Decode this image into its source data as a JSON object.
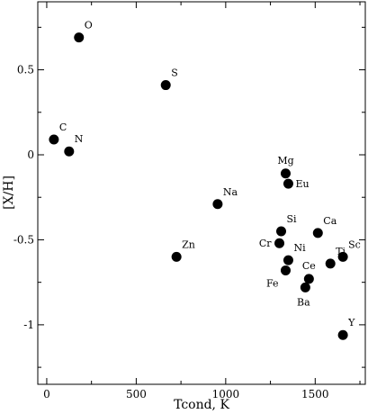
{
  "chart_data": {
    "type": "scatter",
    "xlabel": "Tcond, K",
    "ylabel": "[X/H]",
    "xlim": [
      -50,
      1780
    ],
    "ylim": [
      -1.35,
      0.9
    ],
    "x_ticks": [
      0,
      500,
      1000,
      1500
    ],
    "y_ticks": [
      -1,
      -0.5,
      0,
      0.5
    ],
    "x_tick_labels": [
      "0",
      "500",
      "1000",
      "1500"
    ],
    "y_tick_labels": [
      "-1",
      "-0.5",
      "0",
      "0.5"
    ],
    "grid": false,
    "points": [
      {
        "label": "O",
        "x": 180,
        "y": 0.69,
        "label_pos": "top-right"
      },
      {
        "label": "S",
        "x": 665,
        "y": 0.41,
        "label_pos": "top-right"
      },
      {
        "label": "C",
        "x": 40,
        "y": 0.09,
        "label_pos": "top-right"
      },
      {
        "label": "N",
        "x": 125,
        "y": 0.02,
        "label_pos": "top-right"
      },
      {
        "label": "Mg",
        "x": 1335,
        "y": -0.11,
        "label_pos": "top"
      },
      {
        "label": "Eu",
        "x": 1350,
        "y": -0.17,
        "label_pos": "right"
      },
      {
        "label": "Na",
        "x": 955,
        "y": -0.29,
        "label_pos": "top-right"
      },
      {
        "label": "Si",
        "x": 1310,
        "y": -0.45,
        "label_pos": "top-right"
      },
      {
        "label": "Ca",
        "x": 1515,
        "y": -0.46,
        "label_pos": "top-right"
      },
      {
        "label": "Cr",
        "x": 1300,
        "y": -0.52,
        "label_pos": "left"
      },
      {
        "label": "Zn",
        "x": 725,
        "y": -0.6,
        "label_pos": "top-right"
      },
      {
        "label": "Ni",
        "x": 1350,
        "y": -0.62,
        "label_pos": "top-right"
      },
      {
        "label": "Ti",
        "x": 1585,
        "y": -0.64,
        "label_pos": "top-right"
      },
      {
        "label": "Sc",
        "x": 1655,
        "y": -0.6,
        "label_pos": "top-right"
      },
      {
        "label": "Fe",
        "x": 1335,
        "y": -0.68,
        "label_pos": "bottom-left"
      },
      {
        "label": "Ce",
        "x": 1465,
        "y": -0.73,
        "label_pos": "top"
      },
      {
        "label": "Ba",
        "x": 1445,
        "y": -0.78,
        "label_pos": "bottom"
      },
      {
        "label": "Y",
        "x": 1655,
        "y": -1.06,
        "label_pos": "top-right"
      }
    ]
  }
}
